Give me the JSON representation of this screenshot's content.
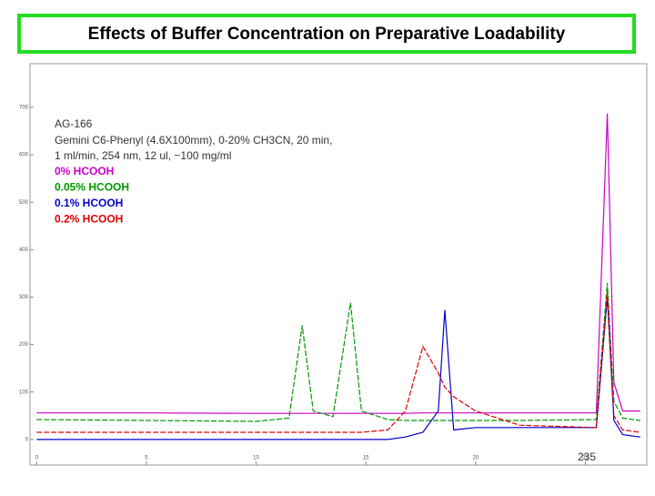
{
  "chart_data": {
    "type": "line",
    "title": "Effects of Buffer Concentration on Preparative Loadability",
    "annotations": [
      "AG-166",
      "Gemini C6-Phenyl (4.6X100mm), 0-20% CH3CN, 20 min,",
      "1 ml/min, 254 nm, 12 ul, ~100 mg/ml"
    ],
    "page_number": "235",
    "x": [
      0,
      5,
      10,
      11.5,
      12.1,
      12.6,
      13.5,
      14.3,
      14.8,
      16,
      16.8,
      17.6,
      18.3,
      18.6,
      19.0,
      20,
      22,
      25.5,
      26.0,
      26.3,
      26.7,
      27.5
    ],
    "series": [
      {
        "name": "0% HCOOH",
        "color": "#cc00cc",
        "values": [
          56,
          56,
          55,
          55,
          55,
          55,
          55,
          55,
          55,
          55,
          55,
          56,
          56,
          56,
          56,
          56,
          56,
          56,
          687,
          120,
          60,
          60
        ]
      },
      {
        "name": "0.05% HCOOH",
        "color": "#009900",
        "values": [
          42,
          40,
          38,
          45,
          240,
          60,
          48,
          288,
          60,
          42,
          40,
          40,
          40,
          40,
          40,
          40,
          40,
          42,
          330,
          80,
          45,
          40
        ]
      },
      {
        "name": "0.1% HCOOH",
        "color": "#0000cc",
        "values": [
          0,
          0,
          0,
          0,
          0,
          0,
          0,
          0,
          0,
          0,
          5,
          15,
          60,
          273,
          20,
          25,
          25,
          25,
          300,
          40,
          10,
          5
        ]
      },
      {
        "name": "0.2% HCOOH",
        "color": "#dd0000",
        "values": [
          15,
          15,
          15,
          15,
          15,
          15,
          15,
          15,
          15,
          20,
          60,
          196,
          140,
          110,
          90,
          60,
          30,
          25,
          310,
          50,
          20,
          15
        ]
      }
    ],
    "xlim": [
      -0.3,
      27.8
    ],
    "xticks": [
      0,
      5,
      10,
      15,
      20,
      25
    ],
    "ylim": [
      -54,
      792
    ],
    "yticks": [
      0,
      100,
      200,
      300,
      400,
      500,
      600,
      700
    ]
  }
}
